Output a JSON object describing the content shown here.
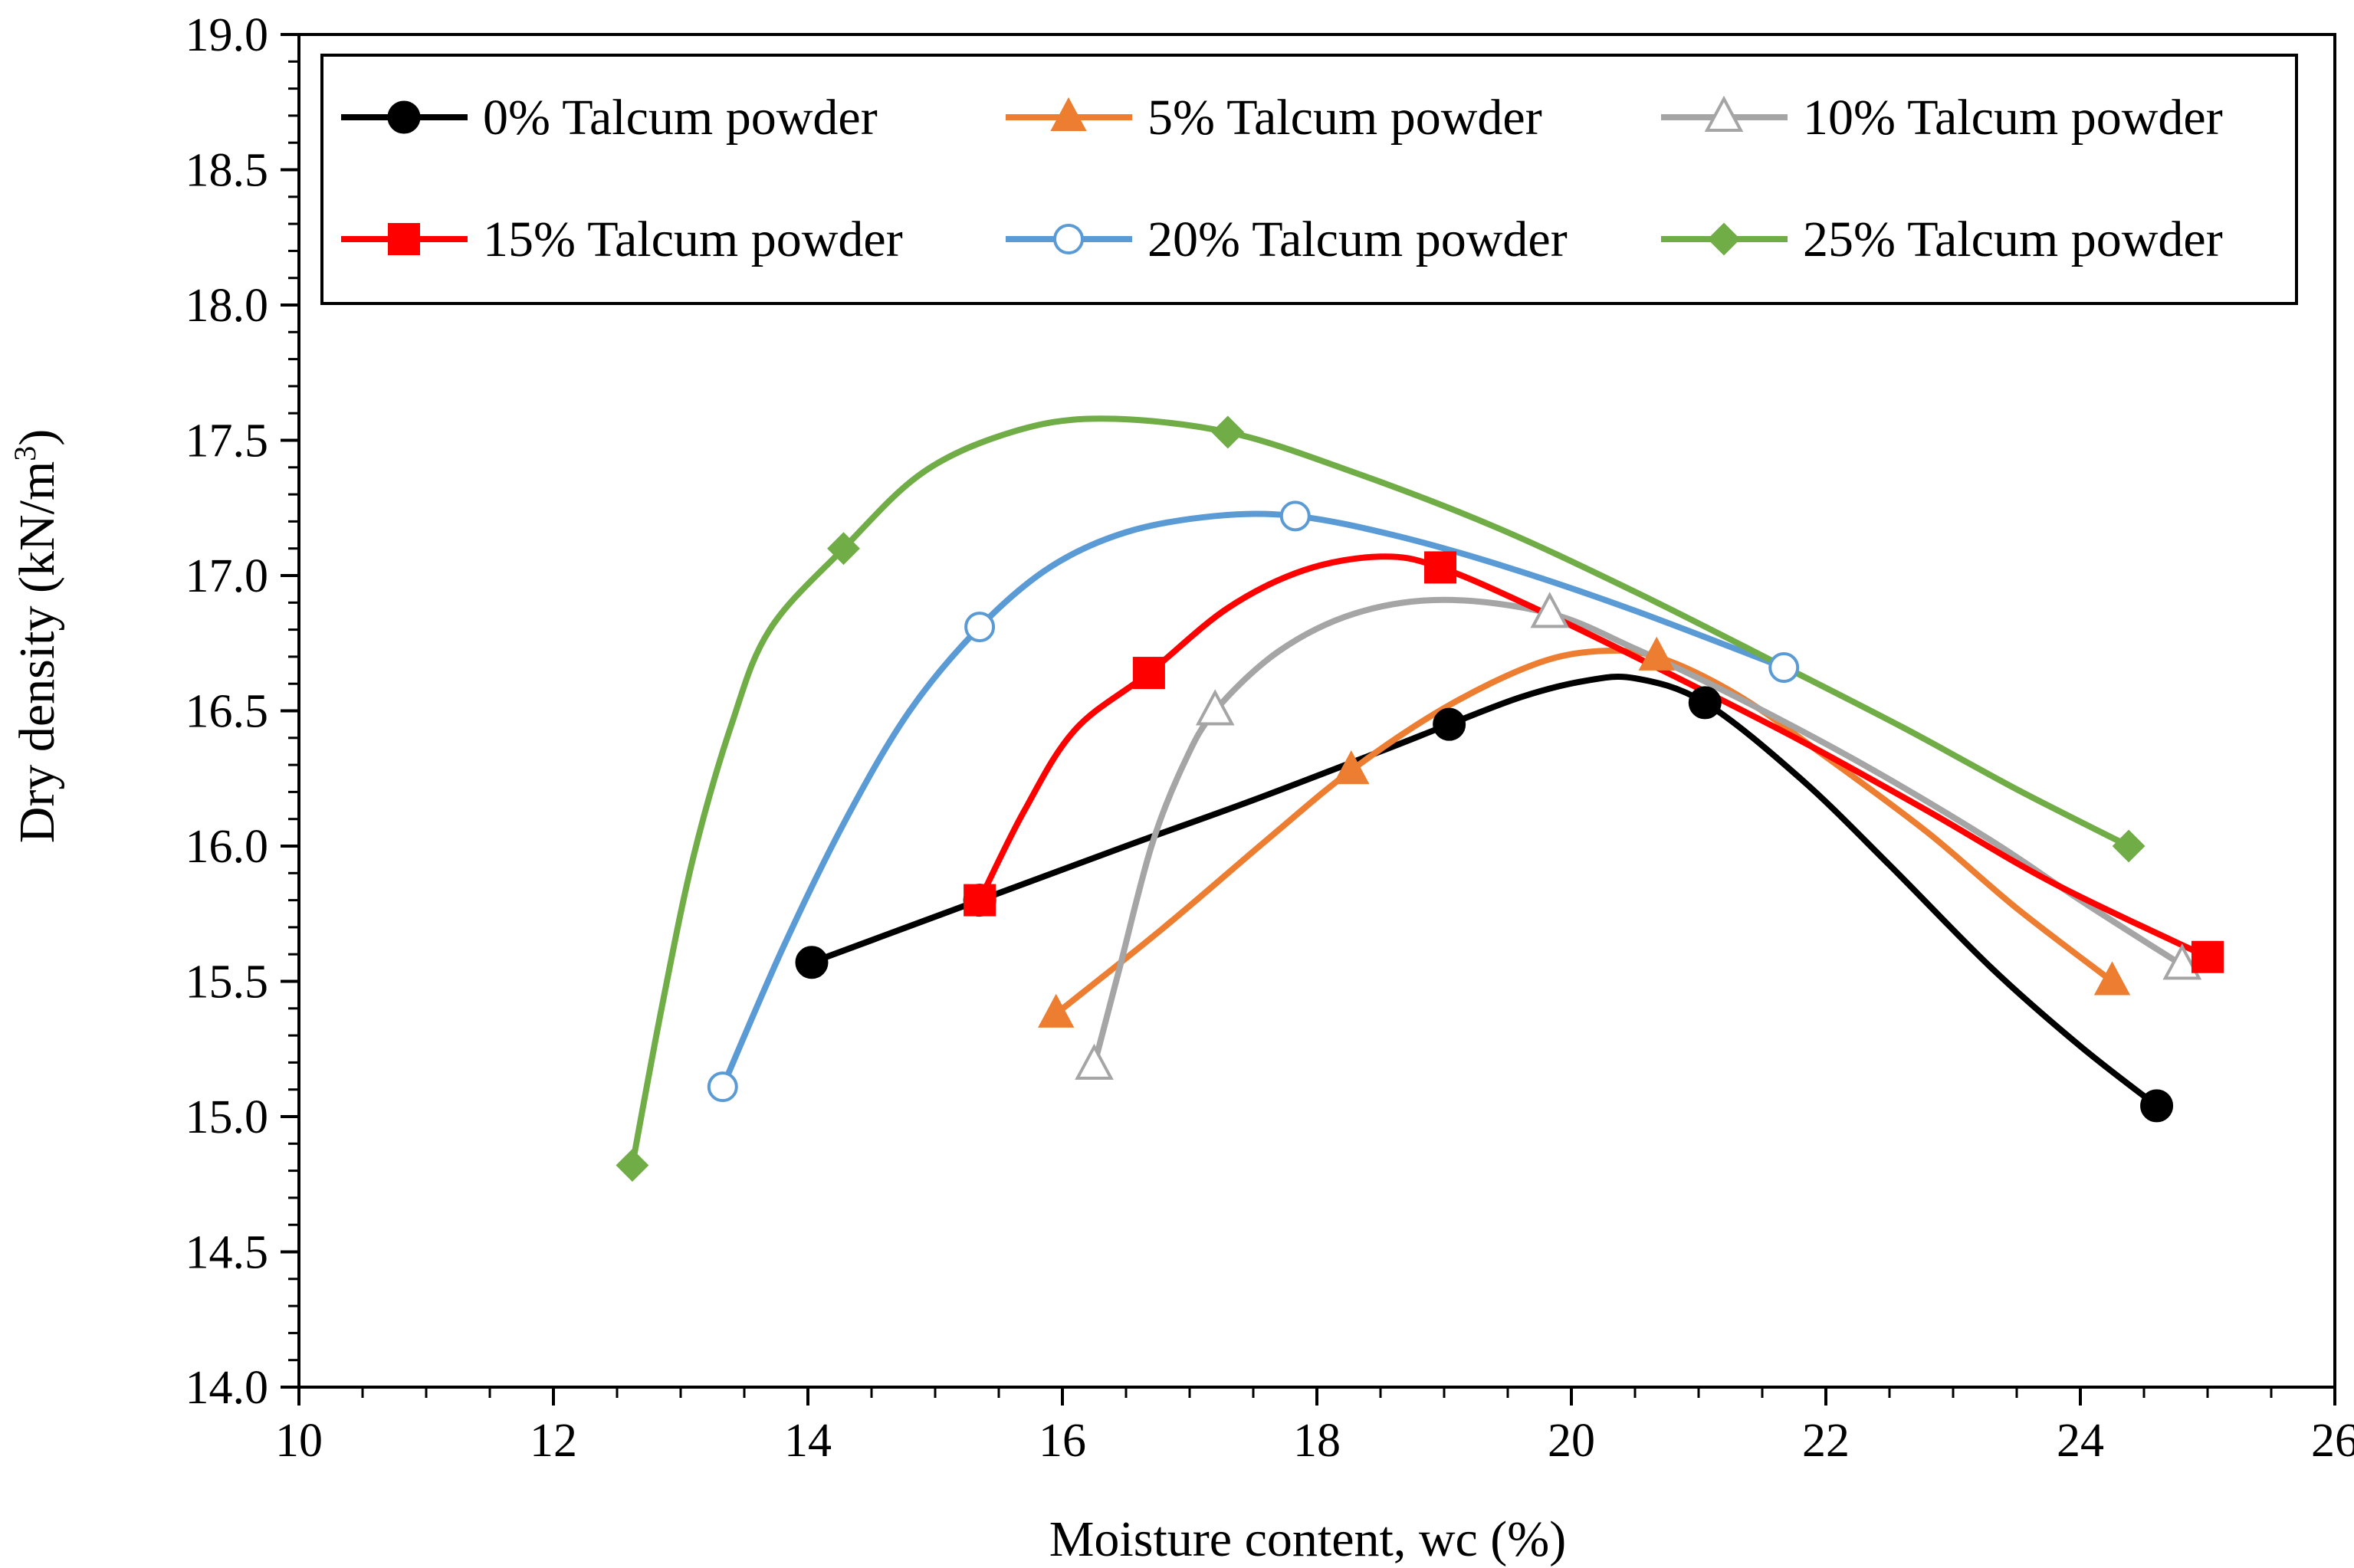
{
  "chart_data": {
    "type": "line",
    "xlabel": "Moisture content, wc (%)",
    "ylabel_main": "Dry density (kN/m",
    "ylabel_sup": "3",
    "ylabel_close": ")",
    "xlim": [
      10,
      26
    ],
    "ylim": [
      14.0,
      19.0
    ],
    "x_ticks": [
      10,
      12,
      14,
      16,
      18,
      20,
      22,
      24,
      26
    ],
    "y_ticks": [
      14.0,
      14.5,
      15.0,
      15.5,
      16.0,
      16.5,
      17.0,
      17.5,
      18.0,
      18.5,
      19.0
    ],
    "x_tick_labels": [
      "10",
      "12",
      "14",
      "16",
      "18",
      "20",
      "22",
      "24",
      "26"
    ],
    "y_tick_labels": [
      "14.0",
      "14.5",
      "15.0",
      "15.5",
      "16.0",
      "16.5",
      "17.0",
      "17.5",
      "18.0",
      "18.5",
      "19.0"
    ],
    "grid": false,
    "legend_position": "top",
    "series": [
      {
        "name": "0% Talcum powder",
        "color": "#000000",
        "marker": "circle-filled",
        "points": [
          [
            14.03,
            15.57
          ],
          [
            15.35,
            15.8
          ],
          [
            19.04,
            16.45
          ],
          [
            21.05,
            16.53
          ],
          [
            24.6,
            15.04
          ]
        ],
        "curve": [
          [
            14.03,
            15.57
          ],
          [
            15.35,
            15.8
          ],
          [
            16.5,
            16.0
          ],
          [
            17.5,
            16.17
          ],
          [
            18.5,
            16.35
          ],
          [
            19.04,
            16.45
          ],
          [
            19.6,
            16.55
          ],
          [
            20.1,
            16.61
          ],
          [
            20.5,
            16.62
          ],
          [
            21.05,
            16.53
          ],
          [
            21.8,
            16.25
          ],
          [
            22.5,
            15.93
          ],
          [
            23.3,
            15.55
          ],
          [
            24.0,
            15.26
          ],
          [
            24.6,
            15.04
          ]
        ]
      },
      {
        "name": "5% Talcum powder",
        "color": "#ED7D31",
        "marker": "triangle-filled",
        "points": [
          [
            15.95,
            15.38
          ],
          [
            18.27,
            16.28
          ],
          [
            20.67,
            16.7
          ],
          [
            24.25,
            15.5
          ]
        ],
        "curve": [
          [
            15.95,
            15.38
          ],
          [
            16.8,
            15.7
          ],
          [
            17.6,
            16.02
          ],
          [
            18.27,
            16.28
          ],
          [
            19.0,
            16.51
          ],
          [
            19.7,
            16.67
          ],
          [
            20.2,
            16.72
          ],
          [
            20.67,
            16.7
          ],
          [
            21.3,
            16.56
          ],
          [
            22.0,
            16.33
          ],
          [
            22.8,
            16.05
          ],
          [
            23.5,
            15.77
          ],
          [
            24.25,
            15.5
          ]
        ]
      },
      {
        "name": "10% Talcum powder",
        "color": "#A5A5A5",
        "marker": "triangle-open",
        "points": [
          [
            16.25,
            15.19
          ],
          [
            17.2,
            16.5
          ],
          [
            19.83,
            16.86
          ],
          [
            24.8,
            15.56
          ]
        ],
        "curve": [
          [
            16.25,
            15.19
          ],
          [
            16.45,
            15.55
          ],
          [
            16.7,
            16.0
          ],
          [
            16.95,
            16.3
          ],
          [
            17.2,
            16.5
          ],
          [
            17.7,
            16.72
          ],
          [
            18.3,
            16.86
          ],
          [
            19.0,
            16.91
          ],
          [
            19.83,
            16.86
          ],
          [
            20.5,
            16.73
          ],
          [
            21.3,
            16.55
          ],
          [
            22.3,
            16.3
          ],
          [
            23.3,
            16.02
          ],
          [
            24.0,
            15.8
          ],
          [
            24.8,
            15.56
          ]
        ]
      },
      {
        "name": "15% Talcum powder",
        "color": "#FF0000",
        "marker": "square-filled",
        "points": [
          [
            15.35,
            15.8
          ],
          [
            16.68,
            16.64
          ],
          [
            18.97,
            17.03
          ],
          [
            25.0,
            15.59
          ]
        ],
        "curve": [
          [
            15.35,
            15.8
          ],
          [
            15.7,
            16.13
          ],
          [
            16.1,
            16.43
          ],
          [
            16.68,
            16.64
          ],
          [
            17.3,
            16.88
          ],
          [
            17.9,
            17.02
          ],
          [
            18.5,
            17.07
          ],
          [
            18.97,
            17.03
          ],
          [
            19.8,
            16.86
          ],
          [
            20.8,
            16.63
          ],
          [
            21.8,
            16.39
          ],
          [
            22.8,
            16.13
          ],
          [
            23.8,
            15.86
          ],
          [
            25.0,
            15.59
          ]
        ]
      },
      {
        "name": "20% Talcum powder",
        "color": "#5B9BD5",
        "marker": "circle-open",
        "points": [
          [
            13.33,
            15.11
          ],
          [
            15.35,
            16.81
          ],
          [
            17.83,
            17.22
          ],
          [
            21.67,
            16.66
          ]
        ],
        "curve": [
          [
            13.33,
            15.11
          ],
          [
            13.8,
            15.62
          ],
          [
            14.3,
            16.1
          ],
          [
            14.8,
            16.5
          ],
          [
            15.35,
            16.81
          ],
          [
            15.9,
            17.03
          ],
          [
            16.5,
            17.16
          ],
          [
            17.2,
            17.22
          ],
          [
            17.83,
            17.22
          ],
          [
            18.6,
            17.15
          ],
          [
            19.5,
            17.03
          ],
          [
            20.5,
            16.87
          ],
          [
            21.67,
            16.66
          ]
        ]
      },
      {
        "name": "25% Talcum powder",
        "color": "#70AD47",
        "marker": "diamond-filled",
        "points": [
          [
            12.62,
            14.82
          ],
          [
            14.28,
            17.1
          ],
          [
            17.3,
            17.53
          ],
          [
            24.38,
            16.0
          ]
        ],
        "curve": [
          [
            12.62,
            14.82
          ],
          [
            12.85,
            15.4
          ],
          [
            13.1,
            15.96
          ],
          [
            13.4,
            16.45
          ],
          [
            13.7,
            16.8
          ],
          [
            14.28,
            17.1
          ],
          [
            14.9,
            17.38
          ],
          [
            15.6,
            17.53
          ],
          [
            16.3,
            17.58
          ],
          [
            17.3,
            17.53
          ],
          [
            18.3,
            17.38
          ],
          [
            19.4,
            17.18
          ],
          [
            20.5,
            16.94
          ],
          [
            21.6,
            16.68
          ],
          [
            22.6,
            16.44
          ],
          [
            23.5,
            16.21
          ],
          [
            24.38,
            16.0
          ]
        ]
      }
    ]
  }
}
